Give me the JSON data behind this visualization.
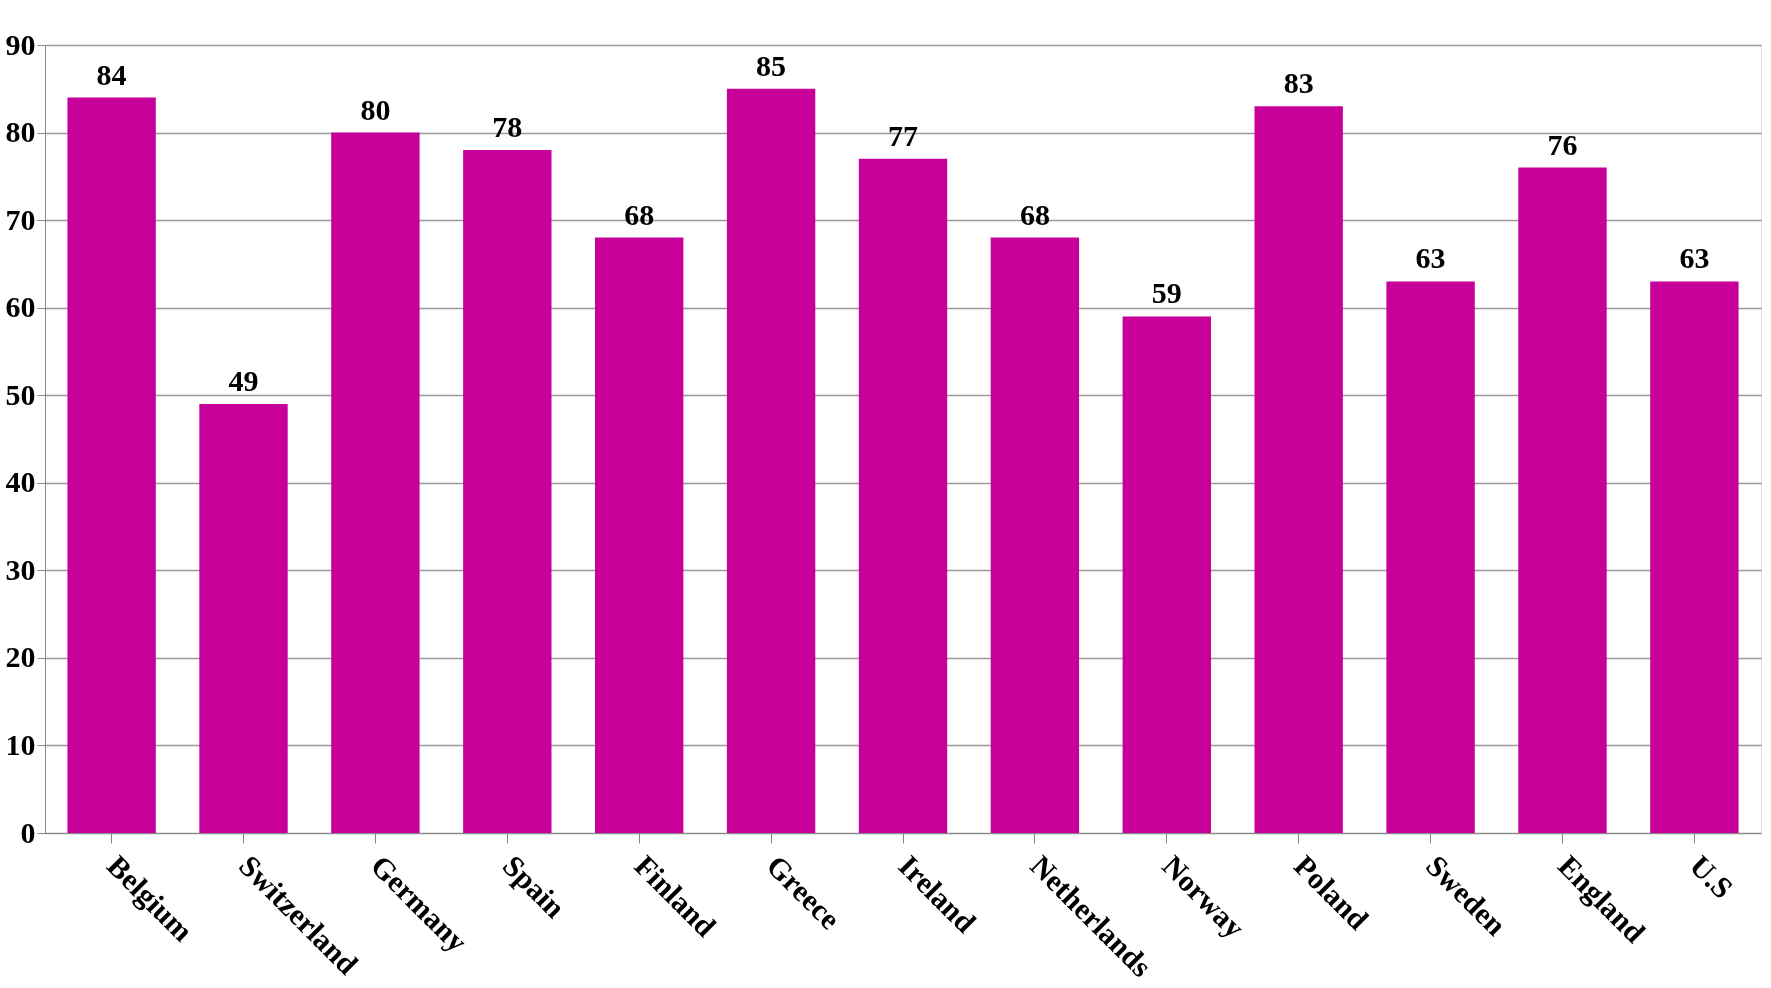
{
  "chart_data": {
    "type": "bar",
    "categories": [
      "Belgium",
      "Switzerland",
      "Germany",
      "Spain",
      "Finland",
      "Greece",
      "Ireland",
      "Netherlands",
      "Norway",
      "Poland",
      "Sweden",
      "England",
      "U.S"
    ],
    "values": [
      84,
      49,
      80,
      78,
      68,
      85,
      77,
      68,
      59,
      83,
      63,
      76,
      63
    ],
    "color": "#c8009a",
    "ylim": [
      0,
      90
    ],
    "yticks": [
      0,
      10,
      20,
      30,
      40,
      50,
      60,
      70,
      80,
      90
    ],
    "grid": "y",
    "data_labels": true
  }
}
